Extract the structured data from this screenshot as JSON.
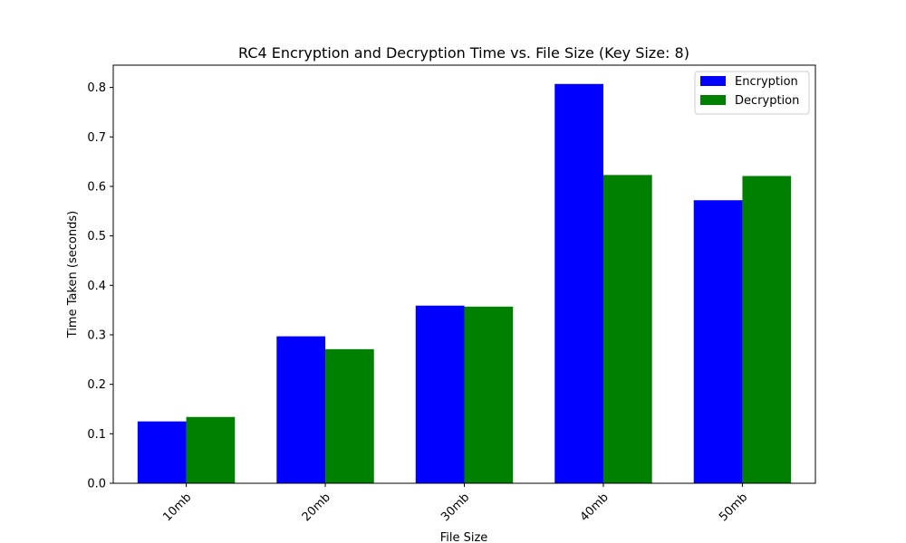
{
  "chart_data": {
    "type": "bar",
    "title": "RC4 Encryption and Decryption Time vs. File Size (Key Size: 8)",
    "xlabel": "File Size",
    "ylabel": "Time Taken (seconds)",
    "categories": [
      "10mb",
      "20mb",
      "30mb",
      "40mb",
      "50mb"
    ],
    "series": [
      {
        "name": "Encryption",
        "color": "#0000ff",
        "values": [
          0.125,
          0.297,
          0.359,
          0.807,
          0.572
        ]
      },
      {
        "name": "Decryption",
        "color": "#008000",
        "values": [
          0.134,
          0.271,
          0.357,
          0.623,
          0.621
        ]
      }
    ],
    "ylim": [
      0,
      0.845
    ],
    "yticks": [
      "0.0",
      "0.1",
      "0.2",
      "0.3",
      "0.4",
      "0.5",
      "0.6",
      "0.7",
      "0.8"
    ],
    "xtick_rotation": 45,
    "grid": false,
    "legend_position": "top-right"
  }
}
